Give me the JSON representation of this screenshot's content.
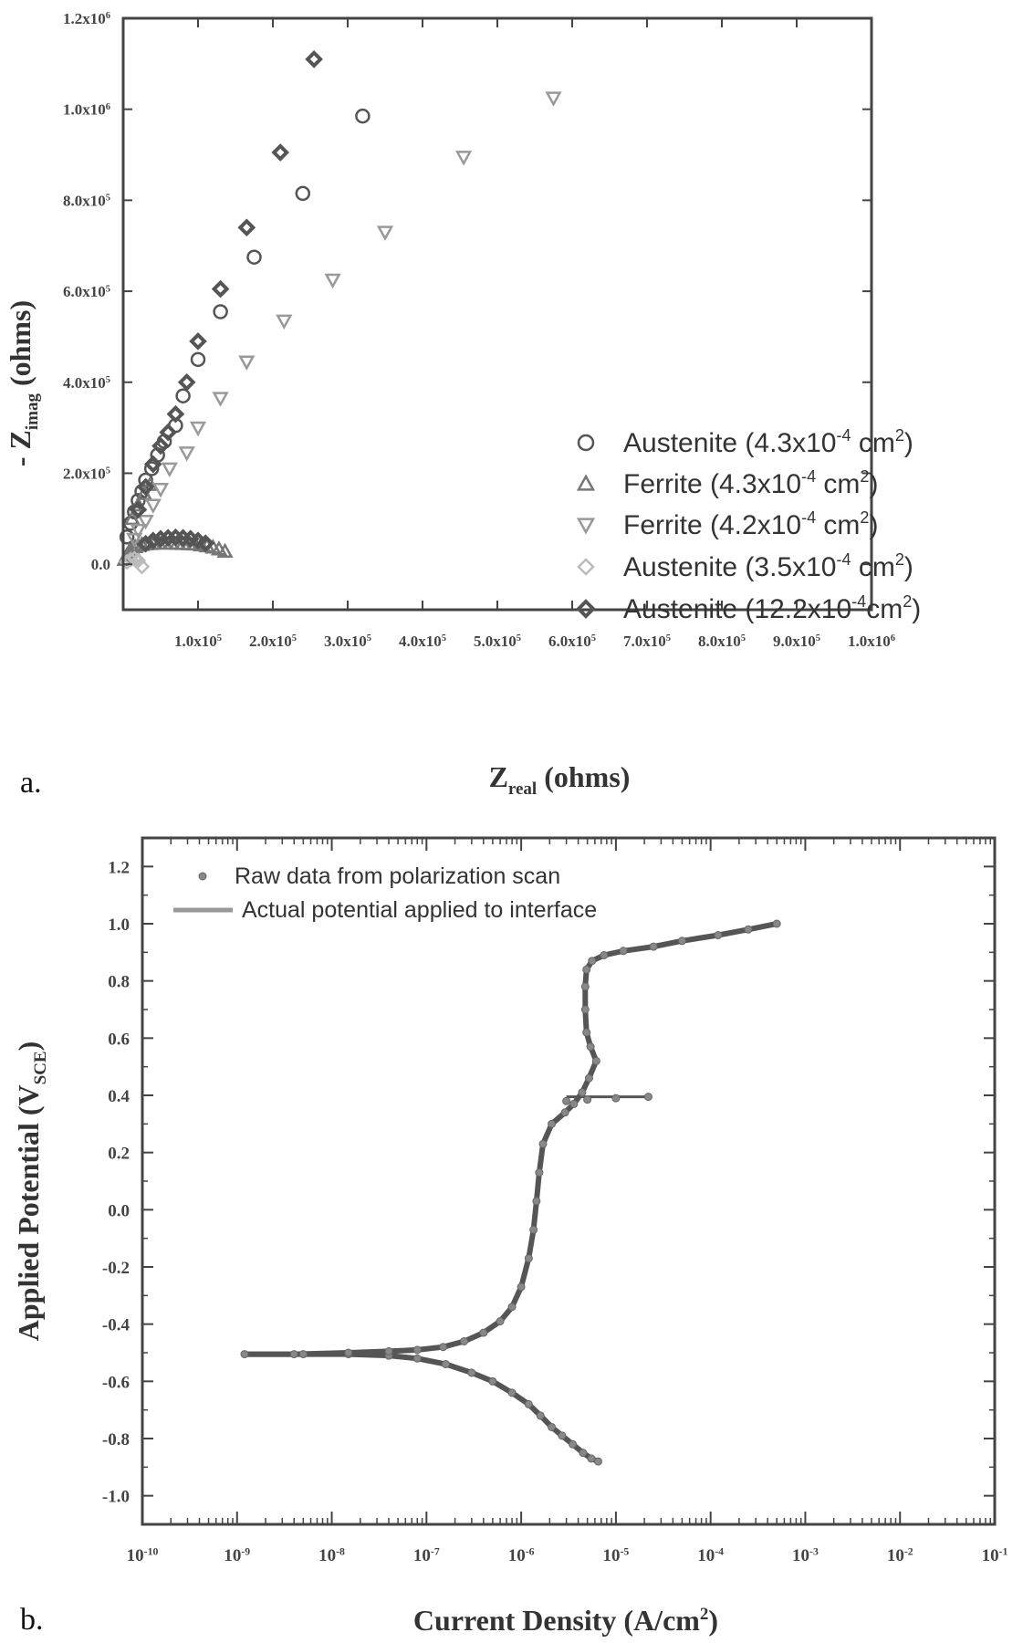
{
  "chart_data": [
    {
      "type": "scatter",
      "panel_label": "a.",
      "xlabel": "Z",
      "xlabel_sub": "real",
      "xlabel_unit": "(ohms)",
      "ylabel": "- Z",
      "ylabel_sub": "imag",
      "ylabel_unit": "(ohms)",
      "xlim": [
        0,
        1000000
      ],
      "ylim": [
        -100000,
        1200000
      ],
      "x_ticks": [
        {
          "value": 100000,
          "label": "1.0x10",
          "exp": "5"
        },
        {
          "value": 200000,
          "label": "2.0x10",
          "exp": "5"
        },
        {
          "value": 300000,
          "label": "3.0x10",
          "exp": "5"
        },
        {
          "value": 400000,
          "label": "4.0x10",
          "exp": "5"
        },
        {
          "value": 500000,
          "label": "5.0x10",
          "exp": "5"
        },
        {
          "value": 600000,
          "label": "6.0x10",
          "exp": "5"
        },
        {
          "value": 700000,
          "label": "7.0x10",
          "exp": "5"
        },
        {
          "value": 800000,
          "label": "8.0x10",
          "exp": "5"
        },
        {
          "value": 900000,
          "label": "9.0x10",
          "exp": "5"
        },
        {
          "value": 1000000,
          "label": "1.0x10",
          "exp": "6"
        }
      ],
      "y_ticks": [
        {
          "value": 0,
          "label": "0.0",
          "exp": ""
        },
        {
          "value": 200000,
          "label": "2.0x10",
          "exp": "5"
        },
        {
          "value": 400000,
          "label": "4.0x10",
          "exp": "5"
        },
        {
          "value": 600000,
          "label": "6.0x10",
          "exp": "5"
        },
        {
          "value": 800000,
          "label": "8.0x10",
          "exp": "5"
        },
        {
          "value": 1000000,
          "label": "1.0x10",
          "exp": "6"
        },
        {
          "value": 1200000,
          "label": "1.2x10",
          "exp": "6"
        }
      ],
      "legend_position": "bottom-right",
      "series": [
        {
          "name": "Austenite (4.3x10",
          "name_exp": "-4",
          "name_unit": " cm",
          "name_unit_exp": "2",
          "name_end": ")",
          "marker": "circle",
          "color": "#555555",
          "x": [
            5000,
            10000,
            15000,
            20000,
            25000,
            30000,
            38000,
            46000,
            55000,
            70000,
            80000,
            100000,
            130000,
            175000,
            240000,
            320000
          ],
          "y": [
            60000,
            90000,
            115000,
            140000,
            160000,
            185000,
            210000,
            240000,
            270000,
            305000,
            370000,
            450000,
            555000,
            675000,
            815000,
            985000
          ]
        },
        {
          "name": "Ferrite (4.3x10",
          "name_exp": "-4",
          "name_unit": " cm",
          "name_unit_exp": "2",
          "name_end": ")",
          "marker": "triangle-up",
          "color": "#777777",
          "x": [
            2000,
            5000,
            8000,
            12000,
            16000,
            20000,
            25000,
            30000,
            35000,
            40000,
            48000,
            56000,
            64000,
            72000,
            80000,
            88000,
            96000,
            104000,
            112000,
            120000,
            128000,
            136000,
            12000,
            20000,
            28000,
            36000
          ],
          "y": [
            10000,
            20000,
            28000,
            34000,
            38000,
            41000,
            43000,
            44500,
            45000,
            45500,
            46000,
            46000,
            46000,
            45500,
            45000,
            44500,
            44000,
            42000,
            40000,
            37000,
            33000,
            28000,
            100000,
            130000,
            155000,
            175000
          ]
        },
        {
          "name": "Ferrite (4.2x10",
          "name_exp": "-4",
          "name_unit": " cm",
          "name_unit_exp": "2",
          "name_end": ")",
          "marker": "triangle-down",
          "color": "#999999",
          "x": [
            30000,
            40000,
            50000,
            62000,
            85000,
            100000,
            130000,
            165000,
            215000,
            280000,
            350000,
            455000,
            575000
          ],
          "y": [
            95000,
            130000,
            165000,
            210000,
            245000,
            300000,
            365000,
            445000,
            535000,
            625000,
            730000,
            895000,
            1025000
          ],
          "extra_x": [
            15000,
            20000
          ],
          "extra_y": [
            55000,
            75000
          ]
        },
        {
          "name": "Austenite (3.5x10",
          "name_exp": "-4",
          "name_unit": " cm",
          "name_unit_exp": "2",
          "name_end": ")",
          "marker": "diamond-open",
          "color": "#bbbbbb",
          "x": [
            5000,
            10000,
            15000,
            20000,
            25000
          ],
          "y": [
            5000,
            10000,
            12000,
            8000,
            -5000
          ]
        },
        {
          "name": "Austenite (12.2x10",
          "name_exp": "-4",
          "name_unit": "cm",
          "name_unit_exp": "2",
          "name_end": ")",
          "marker": "diamond",
          "color": "#555555",
          "x": [
            20000,
            30000,
            40000,
            50000,
            60000,
            70000,
            85000,
            100000,
            130000,
            165000,
            210000,
            255000,
            30000,
            40000,
            50000,
            60000,
            70000,
            80000,
            90000,
            100000,
            110000
          ],
          "y": [
            120000,
            170000,
            220000,
            260000,
            290000,
            330000,
            400000,
            490000,
            605000,
            740000,
            905000,
            1110000,
            45000,
            52000,
            56000,
            58000,
            59000,
            58000,
            56000,
            52000,
            46000
          ]
        }
      ]
    },
    {
      "type": "line",
      "panel_label": "b.",
      "xlabel": "Current Density (A/cm",
      "xlabel_exp": "2",
      "xlabel_end": ")",
      "ylabel": "Applied Potential (V",
      "ylabel_sub": "SCE",
      "ylabel_end": ")",
      "x_scale": "log",
      "xlim": [
        1e-10,
        0.1
      ],
      "ylim": [
        -1.1,
        1.3
      ],
      "x_ticks": [
        {
          "value": 1e-10,
          "label": "10",
          "exp": "-10"
        },
        {
          "value": 1e-09,
          "label": "10",
          "exp": "-9"
        },
        {
          "value": 1e-08,
          "label": "10",
          "exp": "-8"
        },
        {
          "value": 1e-07,
          "label": "10",
          "exp": "-7"
        },
        {
          "value": 1e-06,
          "label": "10",
          "exp": "-6"
        },
        {
          "value": 1e-05,
          "label": "10",
          "exp": "-5"
        },
        {
          "value": 0.0001,
          "label": "10",
          "exp": "-4"
        },
        {
          "value": 0.001,
          "label": "10",
          "exp": "-3"
        },
        {
          "value": 0.01,
          "label": "10",
          "exp": "-2"
        },
        {
          "value": 0.1,
          "label": "10",
          "exp": "-1"
        }
      ],
      "y_ticks": [
        {
          "value": -1.0,
          "label": "-1.0"
        },
        {
          "value": -0.8,
          "label": "-0.8"
        },
        {
          "value": -0.6,
          "label": "-0.6"
        },
        {
          "value": -0.4,
          "label": "-0.4"
        },
        {
          "value": -0.2,
          "label": "-0.2"
        },
        {
          "value": 0.0,
          "label": "0.0"
        },
        {
          "value": 0.2,
          "label": "0.2"
        },
        {
          "value": 0.4,
          "label": "0.4"
        },
        {
          "value": 0.6,
          "label": "0.6"
        },
        {
          "value": 0.8,
          "label": "0.8"
        },
        {
          "value": 1.0,
          "label": "1.0"
        },
        {
          "value": 1.2,
          "label": "1.2"
        }
      ],
      "legend_position": "top-left",
      "series": [
        {
          "name": "Raw data from polarization scan",
          "marker": "circle",
          "color": "#888888",
          "x": [
            6.5e-06,
            5.5e-06,
            4.5e-06,
            3.5e-06,
            2.7e-06,
            2.1e-06,
            1.6e-06,
            1.2e-06,
            8e-07,
            5e-07,
            3e-07,
            1.6e-07,
            8e-08,
            4e-08,
            1.5e-08,
            5e-09,
            1.2e-09,
            4e-09,
            1.5e-08,
            4e-08,
            8e-08,
            1.5e-07,
            2.5e-07,
            4e-07,
            6e-07,
            8e-07,
            1e-06,
            1.2e-06,
            1.35e-06,
            1.45e-06,
            1.55e-06,
            1.7e-06,
            2.1e-06,
            2.9e-06,
            3.6e-06,
            4.4e-06,
            5.2e-06,
            6.2e-06,
            5.4e-06,
            4.9e-06,
            4.75e-06,
            4.75e-06,
            4.9e-06,
            5.6e-06,
            7.5e-06,
            1.2e-05,
            2.5e-05,
            5e-05,
            0.00012,
            0.00025,
            0.0005,
            2.2e-05,
            1e-05,
            5e-06,
            3e-06
          ],
          "y": [
            -0.88,
            -0.87,
            -0.85,
            -0.82,
            -0.79,
            -0.76,
            -0.72,
            -0.68,
            -0.64,
            -0.6,
            -0.57,
            -0.54,
            -0.52,
            -0.51,
            -0.505,
            -0.505,
            -0.505,
            -0.505,
            -0.5,
            -0.495,
            -0.49,
            -0.48,
            -0.46,
            -0.43,
            -0.39,
            -0.34,
            -0.27,
            -0.17,
            -0.07,
            0.03,
            0.13,
            0.23,
            0.3,
            0.34,
            0.37,
            0.41,
            0.46,
            0.52,
            0.57,
            0.62,
            0.7,
            0.78,
            0.84,
            0.87,
            0.89,
            0.905,
            0.92,
            0.94,
            0.96,
            0.98,
            1.0,
            0.395,
            0.39,
            0.385,
            0.38
          ]
        },
        {
          "name": "Actual potential applied to interface",
          "marker": "line",
          "color": "#555555",
          "x": [
            6.5e-06,
            5.5e-06,
            4.5e-06,
            3.5e-06,
            2.7e-06,
            2.1e-06,
            1.6e-06,
            1.2e-06,
            8e-07,
            5e-07,
            3e-07,
            1.6e-07,
            8e-08,
            4e-08,
            1.5e-08,
            5e-09,
            1.2e-09
          ],
          "y": [
            -0.88,
            -0.87,
            -0.85,
            -0.82,
            -0.79,
            -0.76,
            -0.72,
            -0.68,
            -0.64,
            -0.6,
            -0.57,
            -0.54,
            -0.52,
            -0.51,
            -0.505,
            -0.505,
            -0.505
          ],
          "x2": [
            1.2e-09,
            4e-09,
            1.5e-08,
            4e-08,
            8e-08,
            1.5e-07,
            2.5e-07,
            4e-07,
            6e-07,
            8e-07,
            1e-06,
            1.2e-06,
            1.35e-06,
            1.45e-06,
            1.55e-06,
            1.7e-06,
            2.1e-06,
            2.9e-06,
            3.6e-06,
            4.4e-06,
            5.2e-06,
            6.2e-06,
            5.4e-06,
            4.9e-06,
            4.75e-06,
            4.75e-06,
            4.9e-06,
            5.6e-06,
            7.5e-06,
            1.2e-05,
            2.5e-05,
            5e-05,
            0.00012,
            0.00025,
            0.0005
          ],
          "y2": [
            -0.505,
            -0.505,
            -0.5,
            -0.495,
            -0.49,
            -0.48,
            -0.46,
            -0.43,
            -0.39,
            -0.34,
            -0.27,
            -0.17,
            -0.07,
            0.03,
            0.13,
            0.23,
            0.3,
            0.34,
            0.37,
            0.41,
            0.46,
            0.52,
            0.57,
            0.62,
            0.7,
            0.78,
            0.84,
            0.87,
            0.89,
            0.905,
            0.92,
            0.94,
            0.96,
            0.98,
            1.0
          ],
          "x3": [
            3e-06,
            2.2e-05
          ],
          "y3": [
            0.395,
            0.395
          ]
        }
      ]
    }
  ]
}
